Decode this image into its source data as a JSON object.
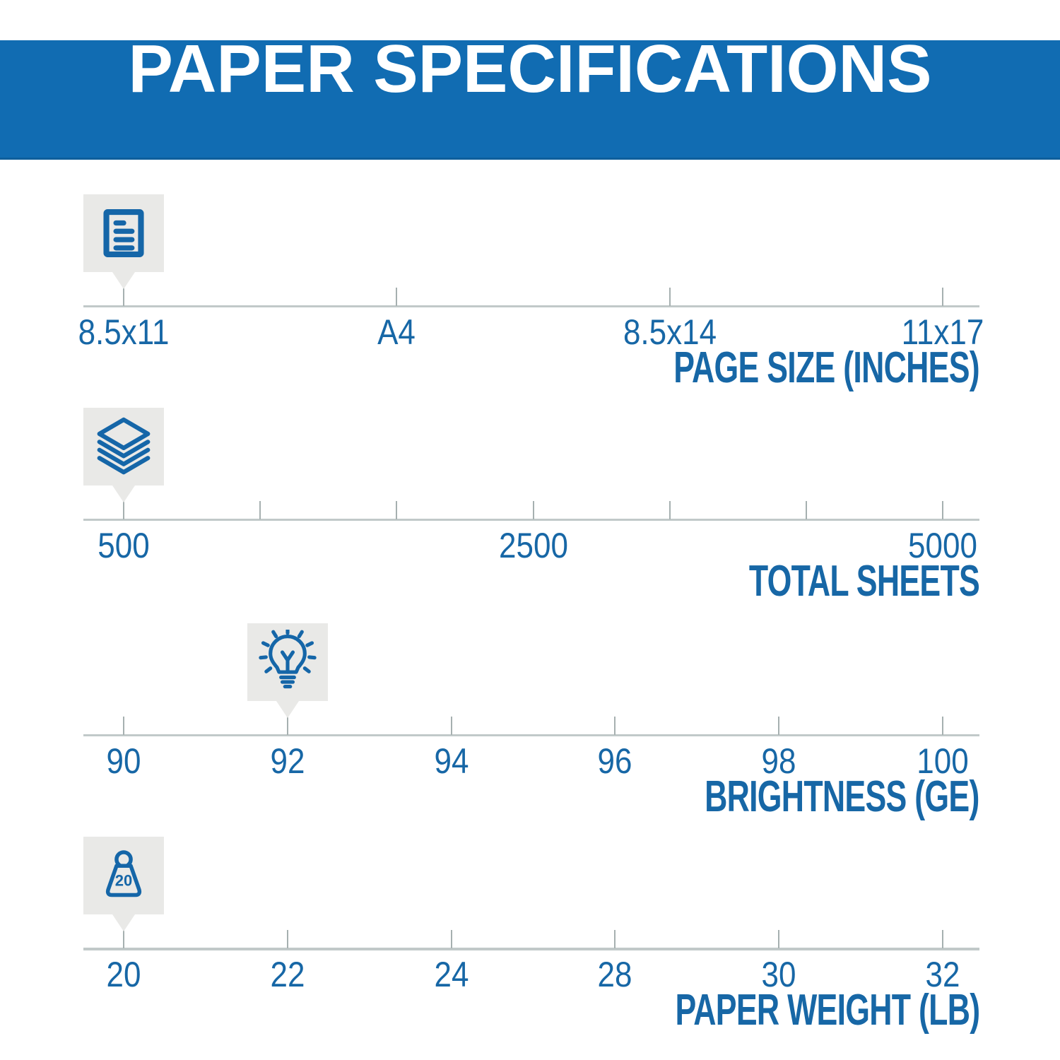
{
  "header": {
    "title": "PAPER SPECIFICATIONS"
  },
  "colors": {
    "banner_blue": "#116CB2",
    "banner_edge": "#0E5F9C",
    "text_blue": "#1767A6",
    "icon_blue": "#1566A8",
    "badge_gray": "#E9E9E7",
    "line_gray": "#C1C9C9",
    "tick_gray": "#A6B0B0",
    "background": "#FFFFFF"
  },
  "sections": [
    {
      "id": "page-size",
      "axis_title": "PAGE SIZE (INCHES)",
      "icon": "document-icon",
      "tick_labels": [
        "8.5x11",
        "A4",
        "8.5x14",
        "11x17"
      ],
      "selected_index": 0,
      "selected_value": "8.5x11"
    },
    {
      "id": "total-sheets",
      "axis_title": "TOTAL SHEETS",
      "icon": "sheets-icon",
      "tick_labels": [
        "500",
        null,
        null,
        "2500",
        null,
        null,
        "5000"
      ],
      "selected_index": 0,
      "selected_value": "500"
    },
    {
      "id": "brightness",
      "axis_title": "BRIGHTNESS (GE)",
      "icon": "bulb-icon",
      "tick_labels": [
        "90",
        "92",
        "94",
        "96",
        "98",
        "100"
      ],
      "selected_index": 1,
      "selected_value": "92"
    },
    {
      "id": "paper-weight",
      "axis_title": "PAPER WEIGHT (LB)",
      "icon": "weight-icon",
      "icon_label": "20",
      "tick_labels": [
        "20",
        "22",
        "24",
        "28",
        "30",
        "32"
      ],
      "selected_index": 0,
      "selected_value": "20"
    }
  ]
}
